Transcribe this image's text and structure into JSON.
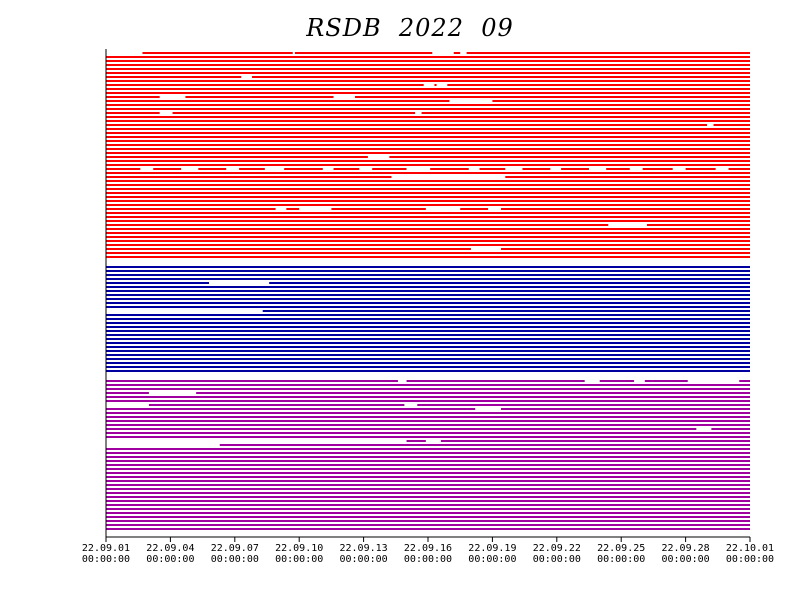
{
  "chart_data": {
    "type": "availability",
    "title": "RSDB  2022  09",
    "xlim": [
      0,
      30
    ],
    "xticks": [
      {
        "value": 0,
        "label": "22.09.01 00:00:00"
      },
      {
        "value": 3,
        "label": "22.09.04 00:00:00"
      },
      {
        "value": 6,
        "label": "22.09.07 00:00:00"
      },
      {
        "value": 9,
        "label": "22.09.10 00:00:00"
      },
      {
        "value": 12,
        "label": "22.09.13 00:00:00"
      },
      {
        "value": 15,
        "label": "22.09.16 00:00:00"
      },
      {
        "value": 18,
        "label": "22.09.19 00:00:00"
      },
      {
        "value": 21,
        "label": "22.09.22 00:00:00"
      },
      {
        "value": 24,
        "label": "22.09.25 00:00:00"
      },
      {
        "value": 27,
        "label": "22.09.28 00:00:00"
      },
      {
        "value": 30,
        "label": "22.10.01 00:00:00"
      }
    ],
    "series": [
      {
        "color": "#ff0000",
        "rows": [
          [
            [
              1.7,
              8.7
            ],
            [
              8.8,
              15.2
            ],
            [
              16.2,
              16.5
            ],
            [
              16.8,
              30
            ]
          ],
          [
            [
              0,
              30
            ]
          ],
          [
            [
              0,
              30
            ]
          ],
          [
            [
              0,
              30
            ]
          ],
          [
            [
              0,
              30
            ]
          ],
          [
            [
              0,
              30
            ]
          ],
          [
            [
              0,
              6.3
            ],
            [
              6.8,
              30
            ]
          ],
          [
            [
              0,
              30
            ]
          ],
          [
            [
              0,
              14.8
            ],
            [
              15.3,
              15.4
            ],
            [
              15.9,
              30
            ]
          ],
          [
            [
              0,
              30
            ]
          ],
          [
            [
              0,
              30
            ]
          ],
          [
            [
              0,
              2.5
            ],
            [
              3.7,
              10.6
            ],
            [
              11.6,
              30
            ]
          ],
          [
            [
              0,
              16
            ],
            [
              18,
              30
            ]
          ],
          [
            [
              0,
              30
            ]
          ],
          [
            [
              0,
              30
            ]
          ],
          [
            [
              0,
              2.5
            ],
            [
              3.1,
              14.4
            ],
            [
              14.7,
              30
            ]
          ],
          [
            [
              0,
              30
            ]
          ],
          [
            [
              0,
              30
            ]
          ],
          [
            [
              0,
              28
            ],
            [
              28.3,
              30
            ]
          ],
          [
            [
              0,
              30
            ]
          ],
          [
            [
              0,
              30
            ]
          ],
          [
            [
              0,
              30
            ]
          ],
          [
            [
              0,
              30
            ]
          ],
          [
            [
              0,
              30
            ]
          ],
          [
            [
              0,
              30
            ]
          ],
          [
            [
              0,
              30
            ]
          ],
          [
            [
              0,
              12.2
            ],
            [
              13.2,
              30
            ]
          ],
          [
            [
              0,
              30
            ]
          ],
          [
            [
              0,
              30
            ]
          ],
          [
            [
              0,
              1.6
            ],
            [
              2.2,
              3.5
            ],
            [
              4.3,
              5.6
            ],
            [
              6.2,
              7.4
            ],
            [
              8.3,
              10.1
            ],
            [
              10.6,
              11.8
            ],
            [
              12.4,
              14
            ],
            [
              15.1,
              16.9
            ],
            [
              17.4,
              18.6
            ],
            [
              19.4,
              20.7
            ],
            [
              21.2,
              22.5
            ],
            [
              23.3,
              24.4
            ],
            [
              25,
              26.4
            ],
            [
              27,
              28.4
            ],
            [
              29,
              30
            ]
          ],
          [
            [
              0,
              30
            ]
          ],
          [
            [
              0,
              13.3
            ],
            [
              18.6,
              30
            ]
          ],
          [
            [
              0,
              30
            ]
          ],
          [
            [
              0,
              30
            ]
          ],
          [
            [
              0,
              30
            ]
          ],
          [
            [
              0,
              30
            ]
          ],
          [
            [
              0,
              30
            ]
          ],
          [
            [
              0,
              30
            ]
          ],
          [
            [
              0,
              30
            ]
          ],
          [
            [
              0,
              7.9
            ],
            [
              8.4,
              9
            ],
            [
              10.5,
              14.9
            ],
            [
              16.5,
              17.8
            ],
            [
              18.4,
              30
            ]
          ],
          [
            [
              0,
              30
            ]
          ],
          [
            [
              0,
              30
            ]
          ],
          [
            [
              0,
              30
            ]
          ],
          [
            [
              0,
              23.4
            ],
            [
              25.2,
              30
            ]
          ],
          [
            [
              0,
              30
            ]
          ],
          [
            [
              0,
              30
            ]
          ],
          [
            [
              0,
              30
            ]
          ],
          [
            [
              0,
              30
            ]
          ],
          [
            [
              0,
              30
            ]
          ],
          [
            [
              0,
              17
            ],
            [
              18.4,
              30
            ]
          ],
          [
            [
              0,
              30
            ]
          ],
          [
            [
              0,
              30
            ]
          ]
        ]
      },
      {
        "color": "#0000a0",
        "rows": [
          [
            [
              0,
              30
            ]
          ],
          [
            [
              0,
              30
            ]
          ],
          [
            [
              0,
              30
            ]
          ],
          [
            [
              0,
              30
            ]
          ],
          [
            [
              0,
              4.8
            ],
            [
              7.6,
              30
            ]
          ],
          [
            [
              0,
              30
            ]
          ],
          [
            [
              0,
              30
            ]
          ],
          [
            [
              0,
              30
            ]
          ],
          [
            [
              0,
              30
            ]
          ],
          [
            [
              0,
              30
            ]
          ],
          [
            [
              0,
              30
            ]
          ],
          [
            [
              7.3,
              30
            ]
          ],
          [
            [
              0,
              30
            ]
          ],
          [
            [
              0,
              30
            ]
          ],
          [
            [
              0,
              30
            ]
          ],
          [
            [
              0,
              30
            ]
          ],
          [
            [
              0,
              30
            ]
          ],
          [
            [
              0,
              30
            ]
          ],
          [
            [
              0,
              30
            ]
          ],
          [
            [
              0,
              30
            ]
          ],
          [
            [
              0,
              30
            ]
          ],
          [
            [
              0,
              30
            ]
          ],
          [
            [
              0,
              30
            ]
          ],
          [
            [
              0,
              30
            ]
          ],
          [
            [
              0,
              30
            ]
          ],
          [
            [
              0,
              30
            ]
          ],
          [
            [
              0,
              30
            ]
          ]
        ]
      },
      {
        "color": "#a000a0",
        "rows": [
          [
            [
              0,
              13.6
            ],
            [
              14,
              22.3
            ],
            [
              23,
              24.6
            ],
            [
              25.1,
              27.1
            ],
            [
              29.5,
              30
            ]
          ],
          [
            [
              0,
              30
            ]
          ],
          [
            [
              0,
              30
            ]
          ],
          [
            [
              0,
              2
            ],
            [
              4.2,
              30
            ]
          ],
          [
            [
              0,
              30
            ]
          ],
          [
            [
              0,
              30
            ]
          ],
          [
            [
              2,
              13.9
            ],
            [
              14.5,
              30
            ]
          ],
          [
            [
              0,
              17.2
            ],
            [
              18.4,
              30
            ]
          ],
          [
            [
              0,
              30
            ]
          ],
          [
            [
              0,
              30
            ]
          ],
          [
            [
              0,
              30
            ]
          ],
          [
            [
              0,
              30
            ]
          ],
          [
            [
              0,
              27.5
            ],
            [
              28.2,
              30
            ]
          ],
          [
            [
              0,
              30
            ]
          ],
          [
            [
              0,
              30
            ]
          ],
          [
            [
              14,
              14.9
            ],
            [
              15.6,
              30
            ]
          ],
          [
            [
              5.3,
              30
            ]
          ],
          [
            [
              0,
              30
            ]
          ],
          [
            [
              0,
              30
            ]
          ],
          [
            [
              0,
              30
            ]
          ],
          [
            [
              0,
              30
            ]
          ],
          [
            [
              0,
              30
            ]
          ],
          [
            [
              0,
              30
            ]
          ],
          [
            [
              0,
              30
            ]
          ],
          [
            [
              0,
              30
            ]
          ],
          [
            [
              0,
              30
            ]
          ],
          [
            [
              0,
              30
            ]
          ],
          [
            [
              0,
              30
            ]
          ],
          [
            [
              0,
              30
            ]
          ],
          [
            [
              0,
              30
            ]
          ],
          [
            [
              0,
              30
            ]
          ],
          [
            [
              0,
              30
            ]
          ],
          [
            [
              0,
              30
            ]
          ],
          [
            [
              0,
              30
            ]
          ],
          [
            [
              0,
              30
            ]
          ],
          [
            [
              0,
              30
            ]
          ],
          [
            [
              0,
              30
            ]
          ],
          [
            [
              0,
              30
            ]
          ]
        ]
      }
    ]
  }
}
